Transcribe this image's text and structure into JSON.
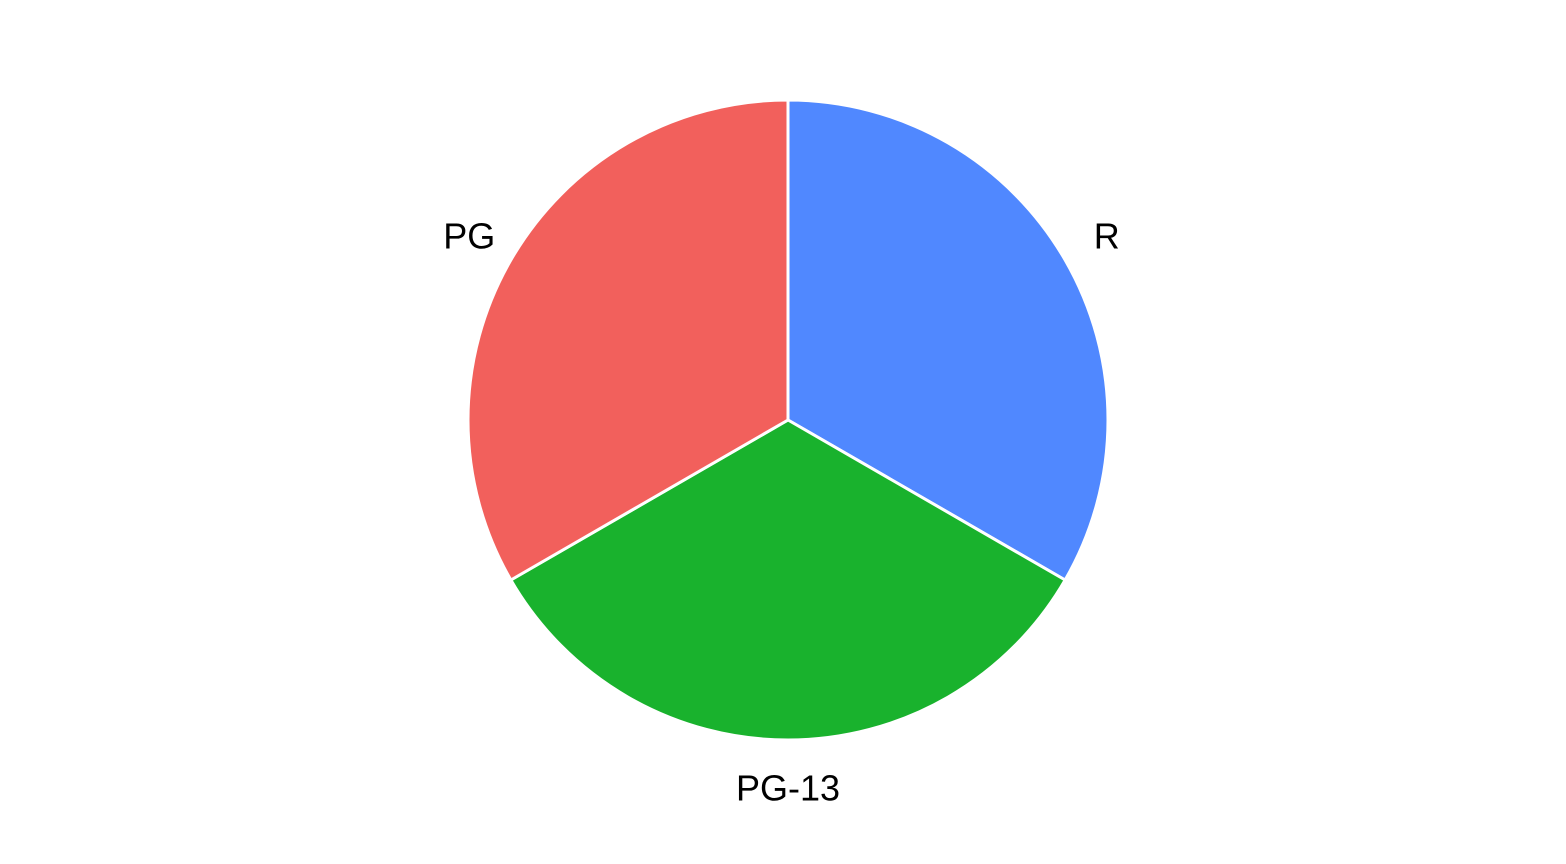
{
  "chart_data": {
    "type": "pie",
    "title": "",
    "categories": [
      "R",
      "PG-13",
      "PG"
    ],
    "values": [
      1,
      1,
      1
    ],
    "colors": {
      "R": "#5088FF",
      "PG-13": "#19B22D",
      "PG": "#F2605C"
    },
    "start_angle_deg": 0,
    "direction": "clockwise",
    "labels_outside": true,
    "legend": "none",
    "grid": false
  }
}
